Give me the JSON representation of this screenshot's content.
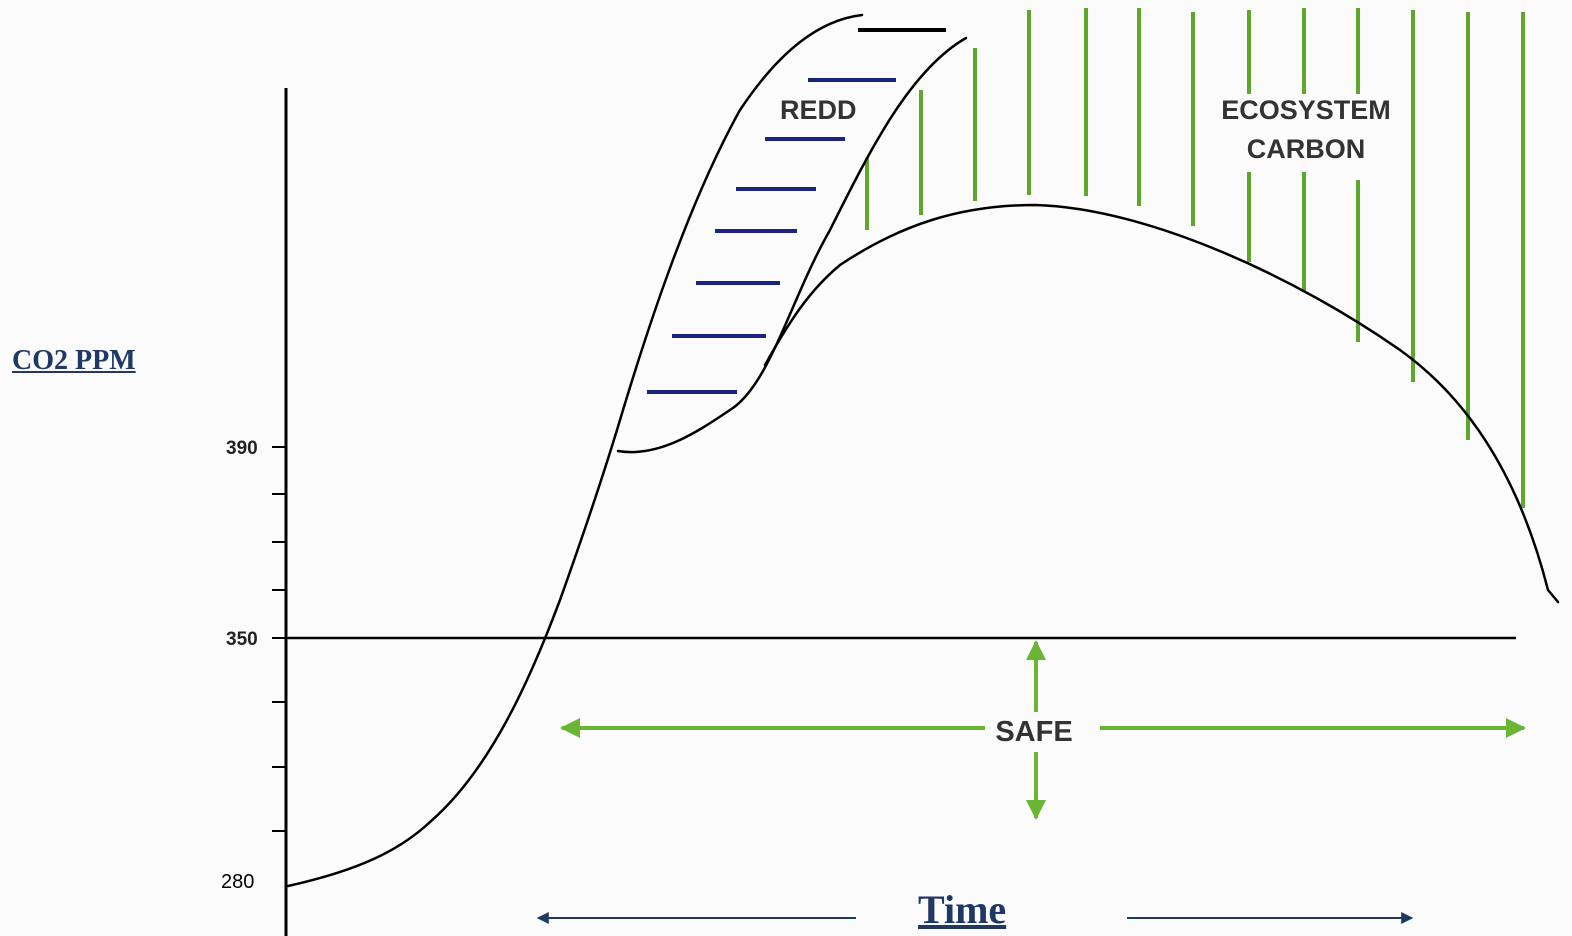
{
  "axis": {
    "y_label": "CO2 PPM",
    "x_label": "Time",
    "ticks": [
      "390",
      "350",
      "280"
    ]
  },
  "labels": {
    "redd": "REDD",
    "ecosystem_line1": "ECOSYSTEM",
    "ecosystem_line2": "CARBON",
    "safe": "SAFE"
  },
  "colors": {
    "curve": "#000000",
    "redd_hatch": "#1a237e",
    "ecosystem_hatch": "#5da82c",
    "safe_arrows": "#6bb535",
    "time_arrows": "#1f3864",
    "axis_title": "#1f3864"
  }
}
